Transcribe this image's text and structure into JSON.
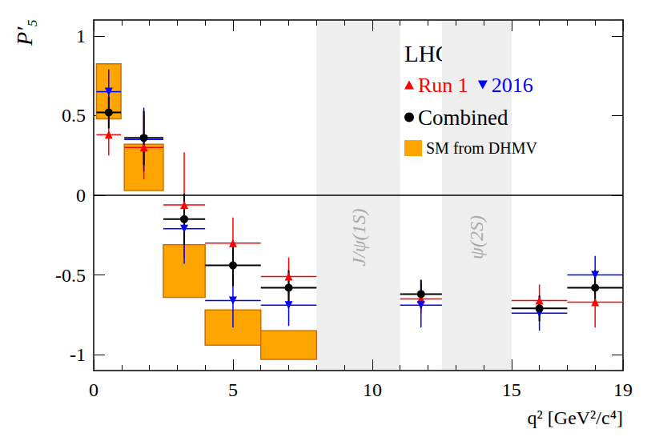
{
  "chart_data": {
    "type": "scatter",
    "title": "LHCb",
    "xlabel": "q² [GeV²/c⁴]",
    "ylabel": "P′₅",
    "xlim": [
      0,
      19
    ],
    "xticks": [
      0,
      5,
      10,
      15
    ],
    "ylim": [
      -1.1,
      1.1
    ],
    "yticks": [
      -1,
      -0.5,
      0,
      0.5,
      1
    ],
    "reference_line": 0,
    "bands": [
      {
        "label": "J/ψ(1S)",
        "range": [
          8,
          11
        ]
      },
      {
        "label": "ψ(2S)",
        "range": [
          12.5,
          15
        ]
      }
    ],
    "series": [
      {
        "name": "SM from DHMV",
        "type": "box",
        "color": "#ffa500",
        "x_ranges": [
          [
            0.1,
            0.98
          ],
          [
            1.1,
            2.5
          ],
          [
            2.5,
            4
          ],
          [
            4,
            6
          ],
          [
            6,
            8
          ]
        ],
        "lows": [
          0.48,
          0.03,
          -0.64,
          -0.94,
          -1.03
        ],
        "highs": [
          0.825,
          0.32,
          -0.31,
          -0.72,
          -0.85
        ]
      },
      {
        "name": "Run 1",
        "type": "scatter",
        "color": "#ff0000",
        "marker": "triangle-up",
        "x": [
          0.54,
          1.8,
          3.25,
          5,
          7,
          11.75,
          16,
          18
        ],
        "x_ranges": [
          [
            0.1,
            0.98
          ],
          [
            1.1,
            2.5
          ],
          [
            2.5,
            4
          ],
          [
            4,
            6
          ],
          [
            6,
            8
          ],
          [
            11,
            12.5
          ],
          [
            15,
            17
          ],
          [
            17,
            19
          ]
        ],
        "values": [
          0.38,
          0.3,
          -0.06,
          -0.3,
          -0.51,
          -0.65,
          -0.66,
          -0.67
        ],
        "yerr": [
          0.13,
          0.2,
          0.33,
          0.16,
          0.12,
          0.09,
          0.1,
          0.16
        ]
      },
      {
        "name": "2016",
        "type": "scatter",
        "color": "#0000ff",
        "marker": "triangle-down",
        "x": [
          0.54,
          1.8,
          3.25,
          5,
          7,
          11.75,
          16,
          18
        ],
        "x_ranges": [
          [
            0.1,
            0.98
          ],
          [
            1.1,
            2.5
          ],
          [
            2.5,
            4
          ],
          [
            4,
            6
          ],
          [
            6,
            8
          ],
          [
            11,
            12.5
          ],
          [
            15,
            17
          ],
          [
            17,
            19
          ]
        ],
        "values": [
          0.65,
          0.35,
          -0.21,
          -0.66,
          -0.69,
          -0.69,
          -0.74,
          -0.5
        ],
        "yerr": [
          0.14,
          0.2,
          0.22,
          0.17,
          0.13,
          0.14,
          0.11,
          0.12
        ]
      },
      {
        "name": "Combined",
        "type": "scatter",
        "color": "#000000",
        "marker": "circle",
        "x": [
          0.54,
          1.8,
          3.25,
          5,
          7,
          11.75,
          16,
          18
        ],
        "x_ranges": [
          [
            0.1,
            0.98
          ],
          [
            1.1,
            2.5
          ],
          [
            2.5,
            4
          ],
          [
            4,
            6
          ],
          [
            6,
            8
          ],
          [
            11,
            12.5
          ],
          [
            15,
            17
          ],
          [
            17,
            19
          ]
        ],
        "values": [
          0.52,
          0.36,
          -0.15,
          -0.44,
          -0.58,
          -0.62,
          -0.71,
          -0.58
        ],
        "yerr": [
          0.1,
          0.17,
          0.16,
          0.13,
          0.11,
          0.09,
          0.08,
          0.11
        ]
      }
    ]
  }
}
